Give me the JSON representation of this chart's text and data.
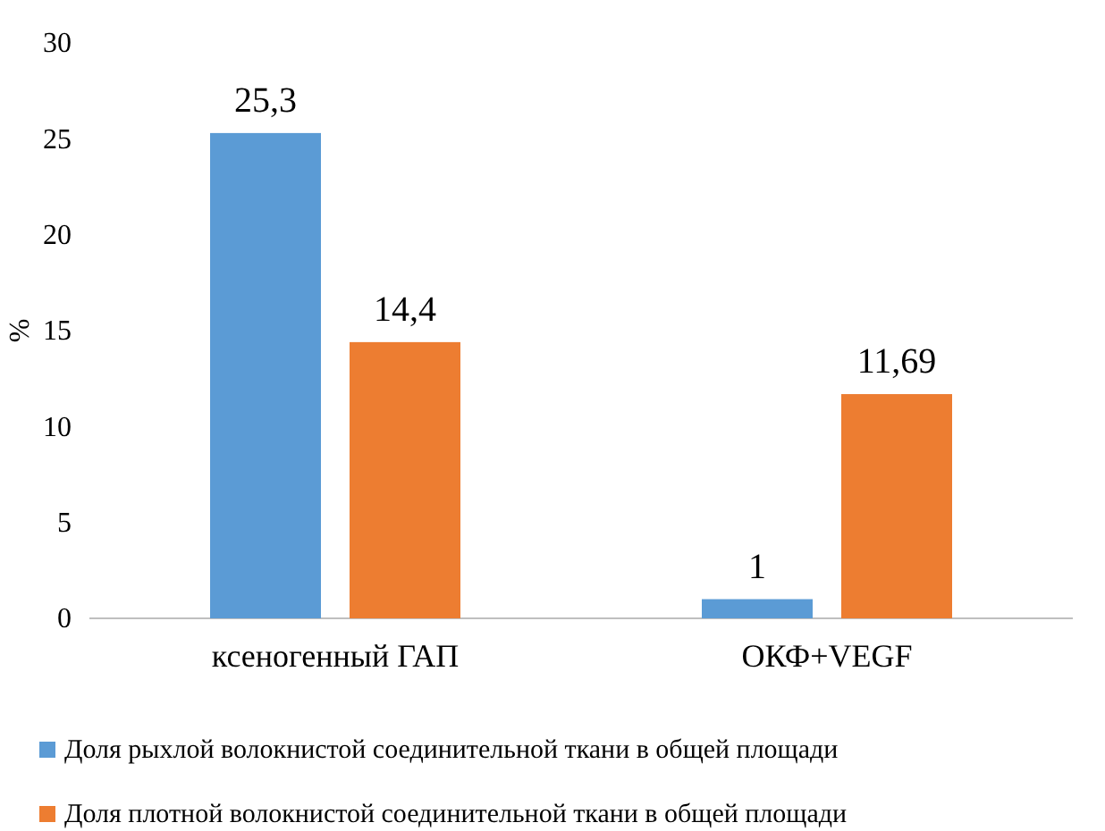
{
  "chart_data": {
    "type": "bar",
    "ylabel": "%",
    "categories": [
      "ксеногенный ГАП",
      "ОКФ+VEGF"
    ],
    "series": [
      {
        "name": "Доля рыхлой волокнистой соединительной ткани в общей площади",
        "color": "#5b9bd5",
        "values": [
          25.3,
          1
        ],
        "value_labels": [
          "25,3",
          "1"
        ]
      },
      {
        "name": "Доля плотной волокнистой соединительной ткани в общей площади",
        "color": "#ed7d31",
        "values": [
          14.4,
          11.69
        ],
        "value_labels": [
          "14,4",
          "11,69"
        ]
      }
    ],
    "ylim": [
      0,
      30
    ],
    "yticks": [
      0,
      5,
      10,
      15,
      20,
      25,
      30
    ],
    "grid": false,
    "legend": "bottom"
  }
}
